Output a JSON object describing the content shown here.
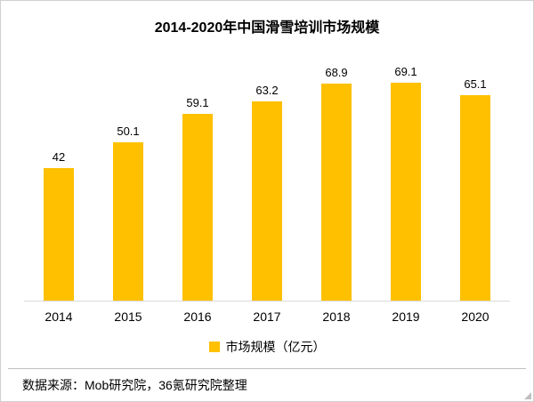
{
  "title": "2014-2020年中国滑雪培训市场规模",
  "legend": {
    "swatch_color": "#FFC000",
    "label": "市场规模（亿元）"
  },
  "source_note": "数据来源：Mob研究院，36氪研究院整理",
  "chart_data": {
    "type": "bar",
    "title": "2014-2020年中国滑雪培训市场规模",
    "categories": [
      "2014",
      "2015",
      "2016",
      "2017",
      "2018",
      "2019",
      "2020"
    ],
    "values": [
      42,
      50.1,
      59.1,
      63.2,
      68.9,
      69.1,
      65.1
    ],
    "xlabel": "",
    "ylabel": "",
    "ylim": [
      0,
      75
    ],
    "bar_color": "#FFC000",
    "grid": false,
    "legend": [
      "市场规模（亿元）"
    ],
    "legend_position": "bottom",
    "data_labels": true
  }
}
